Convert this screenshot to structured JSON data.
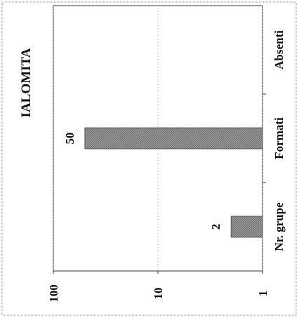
{
  "chart_data": {
    "type": "bar",
    "title": "IALOMITA",
    "categories": [
      "Nr. grupe",
      "Formati",
      "Absenti"
    ],
    "values": [
      2,
      50,
      null
    ],
    "data_labels": [
      "2",
      "50",
      ""
    ],
    "y_scale": "log",
    "ylim": [
      1,
      100
    ],
    "y_ticks": [
      "1",
      "10",
      "100"
    ],
    "grid": true,
    "orientation": "rotated-90",
    "bar_color": "#9a9a9a"
  }
}
